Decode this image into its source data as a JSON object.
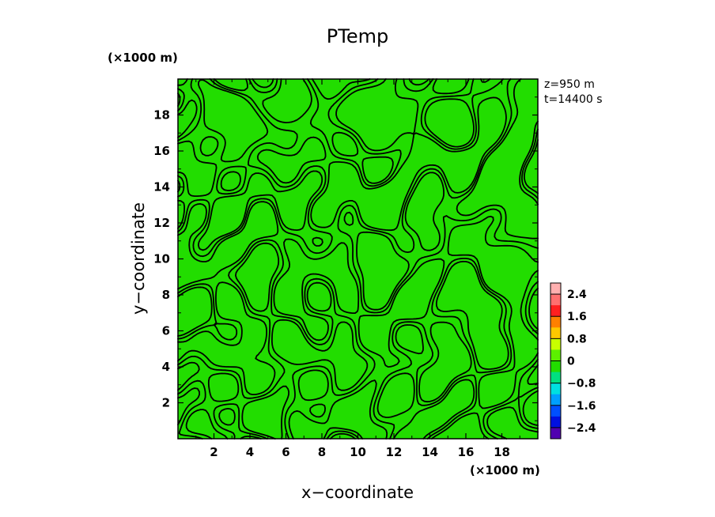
{
  "chart_data": {
    "type": "contour",
    "title": "PTemp",
    "xlabel": "x−coordinate",
    "ylabel": "y−coordinate",
    "x_unit": "(×1000 m)",
    "y_unit": "(×1000 m)",
    "info": [
      "z=950 m",
      "t=14400 s"
    ],
    "xlim": [
      0,
      20
    ],
    "ylim": [
      0,
      20
    ],
    "xticks": [
      2,
      4,
      6,
      8,
      10,
      12,
      14,
      16,
      18
    ],
    "yticks": [
      2,
      4,
      6,
      8,
      10,
      12,
      14,
      16,
      18
    ],
    "field_color": "#22dd00",
    "contour_color": "#000000",
    "colorbar": {
      "labels": [
        "2.4",
        "1.6",
        "0.8",
        "0",
        "−0.8",
        "−1.6",
        "−2.4"
      ],
      "label_values": [
        2.4,
        1.6,
        0.8,
        0,
        -0.8,
        -1.6,
        -2.4
      ],
      "range": [
        -2.8,
        2.8
      ],
      "colors": [
        "#ffb0b0",
        "#ff7070",
        "#ff2020",
        "#ff8000",
        "#ffc800",
        "#c8ff00",
        "#5cf000",
        "#22dd00",
        "#00e080",
        "#00e0e0",
        "#00a0ff",
        "#0050ff",
        "#0010e0",
        "#5000b0"
      ]
    }
  }
}
